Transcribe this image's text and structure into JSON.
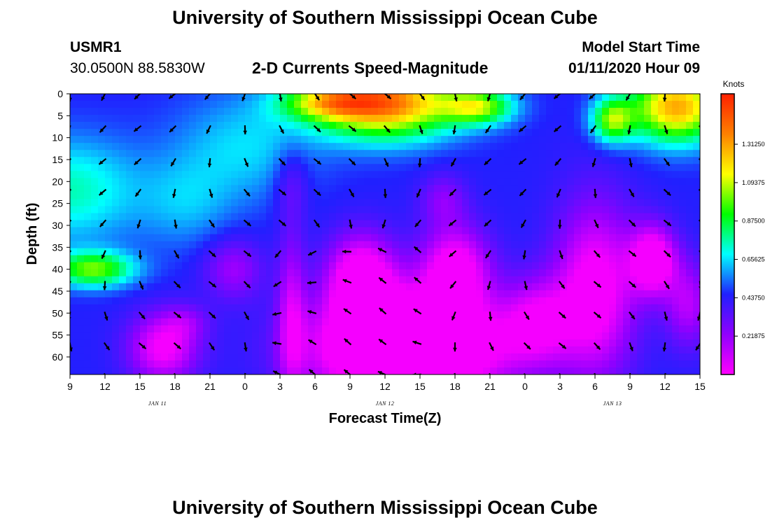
{
  "title": "University of Southern Mississippi Ocean Cube",
  "footer_title": "University of Southern Mississippi Ocean Cube",
  "station": {
    "name": "USMR1",
    "coords": "30.0500N 88.5830W"
  },
  "model_start": {
    "label": "Model Start Time",
    "value": "01/11/2020 Hour 09"
  },
  "chart_data": {
    "type": "heatmap",
    "subtitle": "2-D Currents Speed-Magnitude",
    "xlabel": "Forecast Time(Z)",
    "ylabel": "Depth (ft)",
    "x_tick_labels": [
      "9",
      "12",
      "15",
      "18",
      "21",
      "0",
      "3",
      "6",
      "9",
      "12",
      "15",
      "18",
      "21",
      "0",
      "3",
      "6",
      "9",
      "12",
      "15"
    ],
    "x_range_hours": [
      0,
      54
    ],
    "date_labels": [
      {
        "text": "JAN 11",
        "hour": 7.5
      },
      {
        "text": "JAN 12",
        "hour": 27
      },
      {
        "text": "JAN 13",
        "hour": 46.5
      }
    ],
    "y_ticks": [
      0,
      5,
      10,
      15,
      20,
      25,
      30,
      35,
      40,
      45,
      50,
      55,
      60
    ],
    "ylim": [
      0,
      64
    ],
    "y_inverted": true,
    "colorbar": {
      "unit": "Knots",
      "tick_labels": [
        "0.21875",
        "0.43750",
        "0.65625",
        "0.87500",
        "1.09375",
        "1.31250"
      ],
      "tick_values": [
        0.21875,
        0.4375,
        0.65625,
        0.875,
        1.09375,
        1.3125
      ],
      "range": [
        0,
        1.6
      ],
      "colors": [
        "#ff00ff",
        "#9000ff",
        "#2020ff",
        "#00ffff",
        "#00ff00",
        "#ffff00",
        "#ff8000",
        "#ff2000"
      ]
    },
    "arrow_hours": [
      0,
      3,
      6,
      9,
      12,
      15,
      18,
      21,
      24,
      27,
      30,
      33,
      36,
      39,
      42,
      45,
      48,
      51,
      54
    ],
    "arrow_depths": [
      0,
      7.5,
      15,
      22,
      29,
      36,
      43,
      50,
      57,
      64
    ]
  }
}
